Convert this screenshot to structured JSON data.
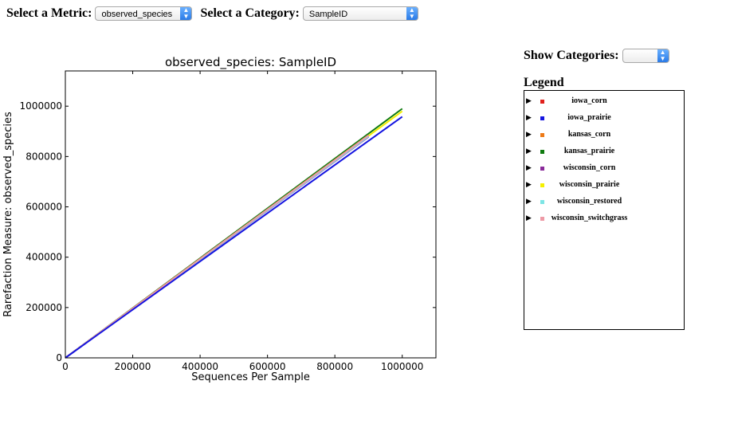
{
  "controls": {
    "metric_label": "Select a Metric:",
    "metric_value": "observed_species",
    "category_label": "Select a Category:",
    "category_value": "SampleID",
    "show_categories_label": "Show Categories:",
    "show_categories_value": "",
    "select_arrow_color": "#2a7ae6"
  },
  "legend": {
    "title": "Legend",
    "items": [
      {
        "label": "iowa_corn",
        "color": "#e0201b"
      },
      {
        "label": "iowa_prairie",
        "color": "#1515e0"
      },
      {
        "label": "kansas_corn",
        "color": "#ed7a17"
      },
      {
        "label": "kansas_prairie",
        "color": "#0e7a0e"
      },
      {
        "label": "wisconsin_corn",
        "color": "#8a2a9a"
      },
      {
        "label": "wisconsin_prairie",
        "color": "#f5f000"
      },
      {
        "label": "wisconsin_restored",
        "color": "#7de5e5"
      },
      {
        "label": "wisconsin_switchgrass",
        "color": "#ee9aa6"
      }
    ]
  },
  "chart_data": {
    "type": "line",
    "title": "observed_species: SampleID",
    "xlabel": "Sequences Per Sample",
    "ylabel": "Rarefaction Measure: observed_species",
    "xlim": [
      0,
      1100000
    ],
    "ylim": [
      0,
      1140000
    ],
    "xticks": [
      0,
      200000,
      400000,
      600000,
      800000,
      1000000
    ],
    "yticks": [
      0,
      200000,
      400000,
      600000,
      800000,
      1000000
    ],
    "xtick_labels": [
      "0",
      "200000",
      "400000",
      "600000",
      "800000",
      "1000000"
    ],
    "ytick_labels": [
      "0",
      "200000",
      "400000",
      "600000",
      "800000",
      "1000000"
    ],
    "grid": false,
    "series": [
      {
        "color": "#0e7a0e",
        "x": [
          0,
          1000000
        ],
        "y": [
          0,
          990000
        ]
      },
      {
        "color": "#f5f000",
        "x": [
          0,
          1000000
        ],
        "y": [
          0,
          980000
        ]
      },
      {
        "color": "#ed7a17",
        "x": [
          0,
          900000
        ],
        "y": [
          0,
          885000
        ]
      },
      {
        "color": "#e0201b",
        "x": [
          0,
          900000
        ],
        "y": [
          0,
          882000
        ]
      },
      {
        "color": "#8a2a9a",
        "x": [
          0,
          900000
        ],
        "y": [
          0,
          878000
        ]
      },
      {
        "color": "#7de5e5",
        "x": [
          0,
          900000
        ],
        "y": [
          0,
          880000
        ]
      },
      {
        "color": "#ee9aa6",
        "x": [
          0,
          900000
        ],
        "y": [
          0,
          884000
        ]
      },
      {
        "color": "#1515e0",
        "x": [
          0,
          1000000
        ],
        "y": [
          0,
          958000
        ]
      }
    ]
  }
}
